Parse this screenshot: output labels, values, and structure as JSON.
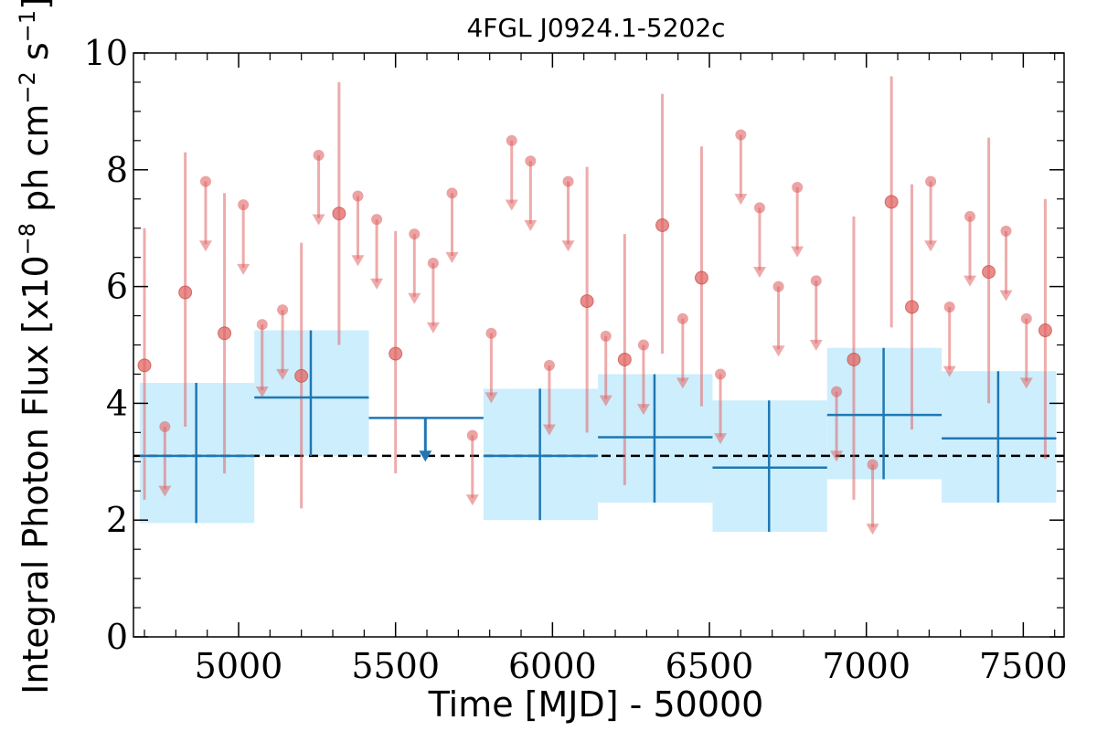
{
  "chart_data": {
    "type": "scatter",
    "title": "4FGL J0924.1-5202c",
    "xlabel": "Time [MJD] - 50000",
    "ylabel": "Integral Photon Flux [x10",
    "ylabel_exp": "−8",
    "ylabel_mid": " ph cm",
    "ylabel_exp2": "−2",
    "ylabel_end": " s",
    "ylabel_exp3": "−1",
    "ylabel_close": "]",
    "xlim": [
      4665,
      7630
    ],
    "ylim": [
      0,
      10
    ],
    "x_ticks": [
      5000,
      5500,
      6000,
      6500,
      7000,
      7500
    ],
    "x_tick_labels": [
      "5000",
      "5500",
      "6000",
      "6500",
      "7000",
      "7500"
    ],
    "y_ticks": [
      0,
      2,
      4,
      6,
      8,
      10
    ],
    "y_tick_labels": [
      "0",
      "2",
      "4",
      "6",
      "8",
      "10"
    ],
    "reference_line": {
      "y": 3.1,
      "style": "dashed",
      "color": "#000000"
    },
    "colors": {
      "fine_bins": "#e06666",
      "coarse_bins": "#1f77b4",
      "coarse_band": "#cdeefc"
    },
    "series": [
      {
        "points": [
          {
            "x": 4700,
            "y": 4.65,
            "ylo": 2.35,
            "yhi": 7.0
          },
          {
            "x": 4765,
            "y": 3.6,
            "ul_to": 2.4
          },
          {
            "x": 4830,
            "y": 5.9,
            "ylo": 3.6,
            "yhi": 8.3
          },
          {
            "x": 4895,
            "y": 7.8,
            "ul_to": 6.6
          },
          {
            "x": 4955,
            "y": 5.2,
            "ylo": 2.8,
            "yhi": 7.6
          },
          {
            "x": 5015,
            "y": 7.4,
            "ul_to": 6.2
          },
          {
            "x": 5075,
            "y": 5.35,
            "ul_to": 4.1
          },
          {
            "x": 5140,
            "y": 5.6,
            "ul_to": 4.4
          },
          {
            "x": 5200,
            "y": 4.47,
            "ylo": 2.2,
            "yhi": 6.75
          },
          {
            "x": 5255,
            "y": 8.25,
            "ul_to": 7.05
          },
          {
            "x": 5320,
            "y": 7.25,
            "ylo": 5.0,
            "yhi": 9.5
          },
          {
            "x": 5380,
            "y": 7.55,
            "ul_to": 6.35
          },
          {
            "x": 5440,
            "y": 7.15,
            "ul_to": 5.95
          },
          {
            "x": 5500,
            "y": 4.85,
            "ylo": 2.8,
            "yhi": 6.95
          },
          {
            "x": 5560,
            "y": 6.9,
            "ul_to": 5.7
          },
          {
            "x": 5620,
            "y": 6.4,
            "ul_to": 5.2
          },
          {
            "x": 5680,
            "y": 7.6,
            "ul_to": 6.4
          },
          {
            "x": 5745,
            "y": 3.45,
            "ul_to": 2.25
          },
          {
            "x": 5805,
            "y": 5.2,
            "ul_to": 4.0
          },
          {
            "x": 5870,
            "y": 8.5,
            "ul_to": 7.3
          },
          {
            "x": 5930,
            "y": 8.15,
            "ul_to": 6.95
          },
          {
            "x": 5990,
            "y": 4.65,
            "ul_to": 3.45
          },
          {
            "x": 6050,
            "y": 7.8,
            "ul_to": 6.6
          },
          {
            "x": 6110,
            "y": 5.75,
            "ylo": 3.5,
            "yhi": 8.05
          },
          {
            "x": 6170,
            "y": 5.15,
            "ul_to": 3.95
          },
          {
            "x": 6230,
            "y": 4.75,
            "ylo": 2.6,
            "yhi": 6.9
          },
          {
            "x": 6290,
            "y": 5.0,
            "ul_to": 3.8
          },
          {
            "x": 6350,
            "y": 7.05,
            "ylo": 4.85,
            "yhi": 9.3
          },
          {
            "x": 6415,
            "y": 5.45,
            "ul_to": 4.25
          },
          {
            "x": 6475,
            "y": 6.15,
            "ylo": 3.95,
            "yhi": 8.4
          },
          {
            "x": 6535,
            "y": 4.5,
            "ul_to": 3.3
          },
          {
            "x": 6600,
            "y": 8.6,
            "ul_to": 7.4
          },
          {
            "x": 6660,
            "y": 7.35,
            "ul_to": 6.15
          },
          {
            "x": 6720,
            "y": 6.0,
            "ul_to": 4.8
          },
          {
            "x": 6780,
            "y": 7.7,
            "ul_to": 6.5
          },
          {
            "x": 6840,
            "y": 6.1,
            "ul_to": 4.9
          },
          {
            "x": 6905,
            "y": 4.2,
            "ul_to": 3.0
          },
          {
            "x": 6960,
            "y": 4.75,
            "ylo": 2.35,
            "yhi": 7.2
          },
          {
            "x": 7020,
            "y": 2.95,
            "ul_to": 1.75
          },
          {
            "x": 7080,
            "y": 7.45,
            "ylo": 5.3,
            "yhi": 9.6
          },
          {
            "x": 7145,
            "y": 5.65,
            "ylo": 3.55,
            "yhi": 7.75
          },
          {
            "x": 7205,
            "y": 7.8,
            "ul_to": 6.6
          },
          {
            "x": 7265,
            "y": 5.65,
            "ul_to": 4.45
          },
          {
            "x": 7330,
            "y": 7.2,
            "ul_to": 6.0
          },
          {
            "x": 7390,
            "y": 6.25,
            "ylo": 4.0,
            "yhi": 8.55
          },
          {
            "x": 7445,
            "y": 6.95,
            "ul_to": 5.75
          },
          {
            "x": 7510,
            "y": 5.45,
            "ul_to": 4.25
          },
          {
            "x": 7570,
            "y": 5.25,
            "ylo": 3.05,
            "yhi": 7.5
          }
        ]
      },
      {
        "points": [
          {
            "xmin": 4685,
            "xmax": 5050,
            "x": 4865,
            "y": 3.1,
            "ylo": 1.95,
            "yhi": 4.35
          },
          {
            "xmin": 5050,
            "xmax": 5415,
            "x": 5230,
            "y": 4.1,
            "ylo": 3.1,
            "yhi": 5.25
          },
          {
            "xmin": 5415,
            "xmax": 5780,
            "x": 5595,
            "y": 3.75,
            "ul_to": 3.0
          },
          {
            "xmin": 5780,
            "xmax": 6145,
            "x": 5960,
            "y": 3.1,
            "ylo": 2.0,
            "yhi": 4.25
          },
          {
            "xmin": 6145,
            "xmax": 6510,
            "x": 6325,
            "y": 3.42,
            "ylo": 2.3,
            "yhi": 4.5
          },
          {
            "xmin": 6510,
            "xmax": 6875,
            "x": 6690,
            "y": 2.9,
            "ylo": 1.8,
            "yhi": 4.05
          },
          {
            "xmin": 6875,
            "xmax": 7240,
            "x": 7055,
            "y": 3.8,
            "ylo": 2.7,
            "yhi": 4.95
          },
          {
            "xmin": 7240,
            "xmax": 7605,
            "x": 7420,
            "y": 3.4,
            "ylo": 2.3,
            "yhi": 4.55
          }
        ]
      }
    ]
  }
}
